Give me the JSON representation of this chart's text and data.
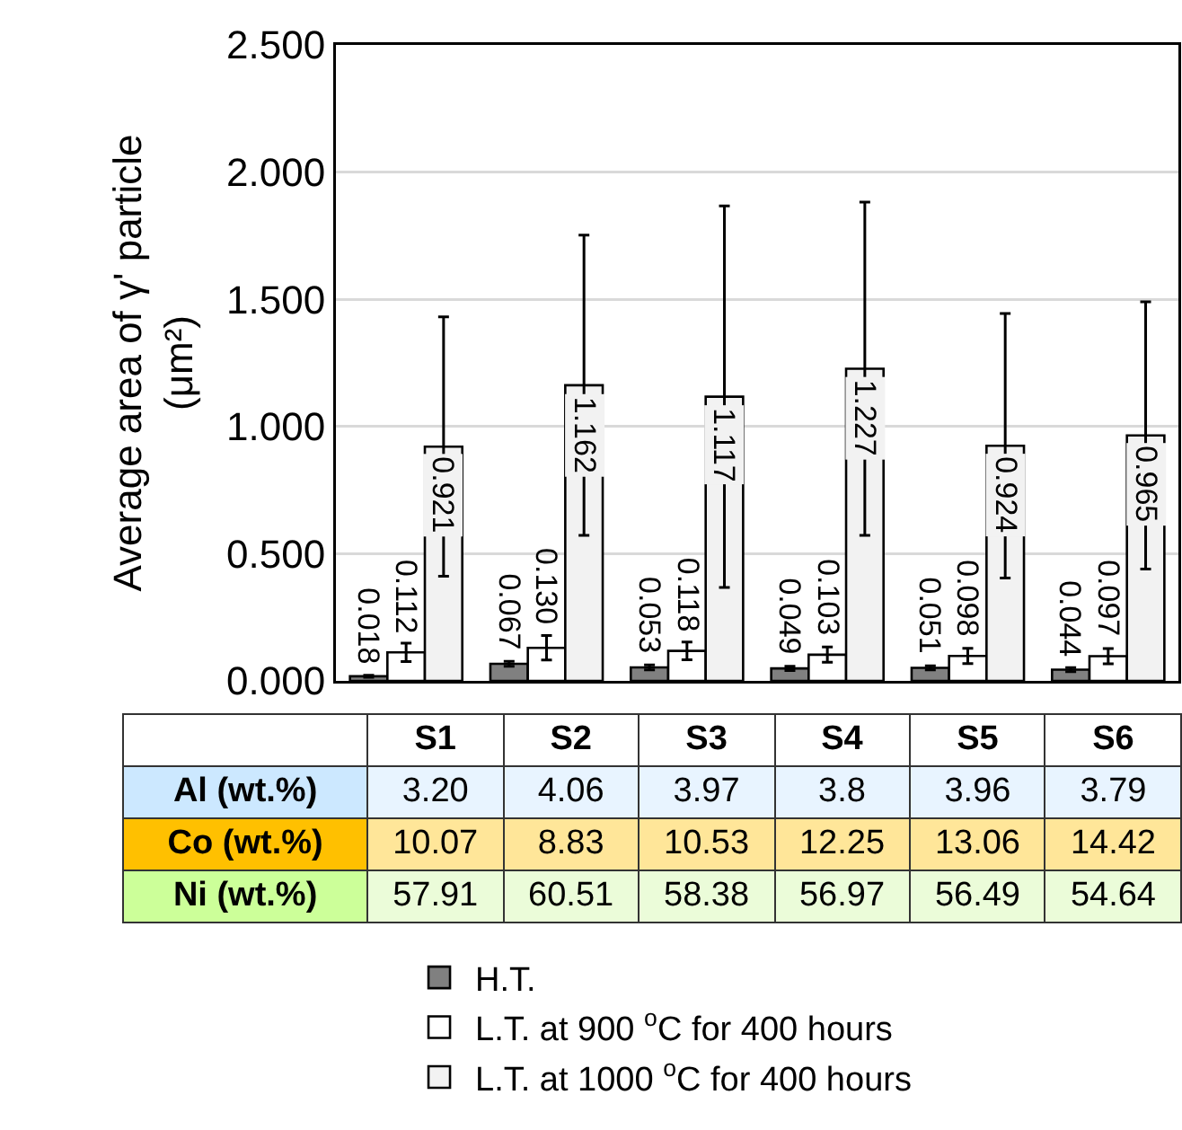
{
  "chart_data": [
    {
      "type": "bar",
      "ylabel": "Average area of γ' particle\n(μm²)",
      "categories": [
        null,
        null,
        null,
        null,
        null,
        null
      ],
      "ylim": [
        0,
        2.5
      ],
      "yticks": [
        {
          "value": 0,
          "label": "0.000"
        },
        {
          "value": 0.5,
          "label": "0.500"
        },
        {
          "value": 1,
          "label": "1.000"
        },
        {
          "value": 1.5,
          "label": "1.500"
        },
        {
          "value": 2,
          "label": "2.000"
        },
        {
          "value": 2.5,
          "label": "2.500"
        }
      ],
      "grid": "y",
      "legend": "bottom",
      "series": [
        {
          "name": "H.T.",
          "color": "#808080",
          "values": [
            0.018,
            0.067,
            0.053,
            0.049,
            0.051,
            0.044
          ],
          "errors": [
            0.004,
            0.01,
            0.01,
            0.008,
            0.008,
            0.008
          ],
          "value_labels": [
            "0.018",
            "0.067",
            "0.053",
            "0.049",
            "0.051",
            "0.044"
          ]
        },
        {
          "name": "L.T. at 900 $^{o}$C for 400 hours",
          "color": "#ffffff",
          "values": [
            0.112,
            0.13,
            0.118,
            0.103,
            0.098,
            0.097
          ],
          "errors": [
            0.036,
            0.048,
            0.035,
            0.03,
            0.03,
            0.03
          ],
          "value_labels": [
            "0.112",
            "0.130",
            "0.118",
            "0.103",
            "0.098",
            "0.097"
          ]
        },
        {
          "name": "L.T. at 1000 $^{o}$C for 400 hours",
          "color": "#f2f2f2",
          "values": [
            0.921,
            1.162,
            1.117,
            1.227,
            0.924,
            0.965
          ],
          "errors": [
            0.51,
            0.59,
            0.75,
            0.655,
            0.52,
            0.525
          ],
          "value_labels": [
            "0.921",
            "1.162",
            "1.117",
            "1.227",
            "0.924",
            "0.965"
          ]
        }
      ]
    },
    {
      "type": "heatmap",
      "categories": [
        "S1",
        "S2",
        "S3",
        "S4",
        "S5",
        "S6"
      ],
      "y_categories": [
        "Al (wt.%)",
        "Co (wt.%)",
        "Ni (wt.%)"
      ],
      "colors": [
        "#e8f4ff",
        "#ffe699",
        "#ebfcd9"
      ],
      "cells": [
        [
          3.2,
          4.06,
          3.97,
          3.8,
          3.96,
          3.79
        ],
        [
          10.07,
          8.83,
          10.53,
          12.25,
          13.06,
          14.42
        ],
        [
          57.91,
          60.51,
          58.38,
          56.97,
          56.49,
          54.64
        ]
      ],
      "cell_labels": [
        [
          "3.20",
          "4.06",
          "3.97",
          "3.8",
          "3.96",
          "3.79"
        ],
        [
          "10.07",
          "8.83",
          "10.53",
          "12.25",
          "13.06",
          "14.42"
        ],
        [
          "57.91",
          "60.51",
          "58.38",
          "56.97",
          "56.49",
          "54.64"
        ]
      ]
    }
  ]
}
